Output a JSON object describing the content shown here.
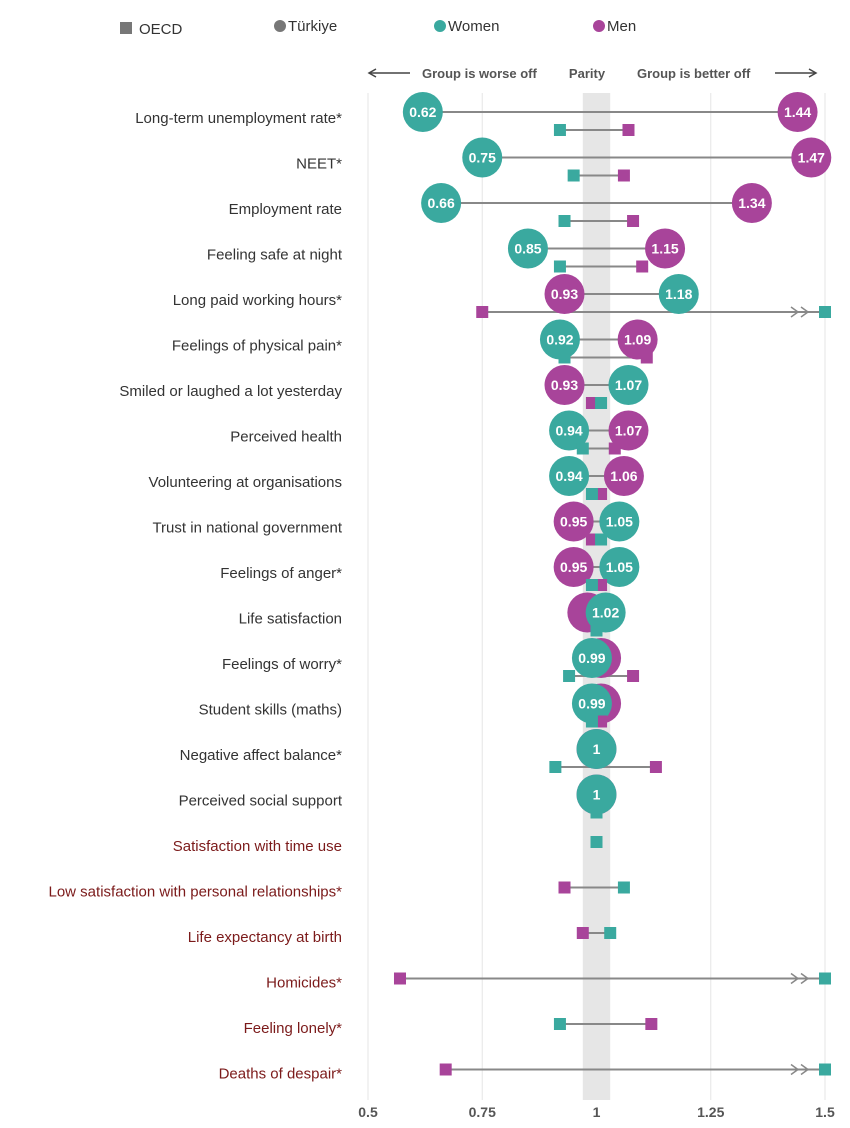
{
  "legend": {
    "oecd": "OECD",
    "turkiye": "Türkiye",
    "women": "Women",
    "men": "Men"
  },
  "direction": {
    "worse": "Group is worse off",
    "parity": "Parity",
    "better": "Group is better off"
  },
  "colors": {
    "women": "#3aa99f",
    "men": "#a8449a",
    "grey_marker": "#808080",
    "connector": "#888888",
    "label_normal": "#333333",
    "label_highlight": "#7b1a1a",
    "parity_band": "#e6e6e6",
    "grid": "#e6e6e6"
  },
  "chart_data": {
    "type": "scatter",
    "title": "",
    "xlabel": "",
    "ylabel": "",
    "xlim": [
      0.5,
      1.5
    ],
    "parity_band": [
      0.97,
      1.03
    ],
    "ticks": [
      {
        "value": 0.5,
        "label": "0.5"
      },
      {
        "value": 0.75,
        "label": "0.75"
      },
      {
        "value": 1,
        "label": "1"
      },
      {
        "value": 1.25,
        "label": "1.25"
      },
      {
        "value": 1.5,
        "label": "1.5"
      }
    ],
    "rows": [
      {
        "label": "Long-term unemployment rate*",
        "highlight": false,
        "turkiye": {
          "women": 0.62,
          "men": 1.44,
          "women_label": "0.62",
          "men_label": "1.44"
        },
        "oecd": {
          "women": 0.92,
          "men": 1.07
        }
      },
      {
        "label": "NEET*",
        "highlight": false,
        "turkiye": {
          "women": 0.75,
          "men": 1.47,
          "women_label": "0.75",
          "men_label": "1.47"
        },
        "oecd": {
          "women": 0.95,
          "men": 1.06
        }
      },
      {
        "label": "Employment rate",
        "highlight": false,
        "turkiye": {
          "women": 0.66,
          "men": 1.34,
          "women_label": "0.66",
          "men_label": "1.34"
        },
        "oecd": {
          "women": 0.93,
          "men": 1.08
        }
      },
      {
        "label": "Feeling safe at night",
        "highlight": false,
        "turkiye": {
          "women": 0.85,
          "men": 1.15,
          "women_label": "0.85",
          "men_label": "1.15"
        },
        "oecd": {
          "women": 0.92,
          "men": 1.1
        }
      },
      {
        "label": "Long paid working hours*",
        "highlight": false,
        "turkiye": {
          "women": 1.18,
          "men": 0.93,
          "women_label": "1.18",
          "men_label": "0.93"
        },
        "oecd": {
          "women": 1.5,
          "men": 0.75,
          "overflow": true
        }
      },
      {
        "label": "Feelings of physical pain*",
        "highlight": false,
        "turkiye": {
          "women": 0.92,
          "men": 1.09,
          "women_label": "0.92",
          "men_label": "1.09"
        },
        "oecd": {
          "women": 0.93,
          "men": 1.11
        }
      },
      {
        "label": "Smiled or laughed a lot yesterday",
        "highlight": false,
        "turkiye": {
          "women": 1.07,
          "men": 0.93,
          "women_label": "1.07",
          "men_label": "0.93"
        },
        "oecd": {
          "women": 1.01,
          "men": 0.99
        }
      },
      {
        "label": "Perceived health",
        "highlight": false,
        "turkiye": {
          "women": 0.94,
          "men": 1.07,
          "women_label": "0.94",
          "men_label": "1.07"
        },
        "oecd": {
          "women": 0.97,
          "men": 1.04
        }
      },
      {
        "label": "Volunteering at organisations",
        "highlight": false,
        "turkiye": {
          "women": 0.94,
          "men": 1.06,
          "women_label": "0.94",
          "men_label": "1.06"
        },
        "oecd": {
          "women": 0.99,
          "men": 1.01
        }
      },
      {
        "label": "Trust in national government",
        "highlight": false,
        "turkiye": {
          "women": 1.05,
          "men": 0.95,
          "women_label": "1.05",
          "men_label": "0.95"
        },
        "oecd": {
          "women": 1.01,
          "men": 0.99
        }
      },
      {
        "label": "Feelings of anger*",
        "highlight": false,
        "turkiye": {
          "women": 1.05,
          "men": 0.95,
          "women_label": "1.05",
          "men_label": "0.95"
        },
        "oecd": {
          "women": 0.99,
          "men": 1.01
        }
      },
      {
        "label": "Life satisfaction",
        "highlight": false,
        "turkiye": {
          "women": 1.02,
          "men": 0.98,
          "women_label": "1.02",
          "men_label": ""
        },
        "oecd": {
          "women": 1.0,
          "men": 1.0
        }
      },
      {
        "label": "Feelings of worry*",
        "highlight": false,
        "turkiye": {
          "women": 0.99,
          "men": 1.01,
          "women_label": "0.99",
          "men_label": ""
        },
        "oecd": {
          "women": 0.94,
          "men": 1.08
        }
      },
      {
        "label": "Student skills (maths)",
        "highlight": false,
        "turkiye": {
          "women": 0.99,
          "men": 1.01,
          "women_label": "0.99",
          "men_label": ""
        },
        "oecd": {
          "women": 0.99,
          "men": 1.01
        }
      },
      {
        "label": "Negative affect balance*",
        "highlight": false,
        "turkiye": {
          "women": 1.0,
          "men": 1.0,
          "women_label": "1",
          "men_label": ""
        },
        "oecd": {
          "women": 0.91,
          "men": 1.13
        }
      },
      {
        "label": "Perceived social support",
        "highlight": false,
        "turkiye": {
          "women": 1.0,
          "men": 1.0,
          "women_label": "1",
          "men_label": ""
        },
        "oecd": {
          "women": 1.0,
          "men": 1.0
        }
      },
      {
        "label": "Satisfaction with time use",
        "highlight": true,
        "turkiye": null,
        "oecd": {
          "women": 1.0,
          "men": 1.0
        }
      },
      {
        "label": "Low satisfaction with personal relationships*",
        "highlight": true,
        "turkiye": null,
        "oecd": {
          "women": 1.06,
          "men": 0.93
        }
      },
      {
        "label": "Life expectancy at birth",
        "highlight": true,
        "turkiye": null,
        "oecd": {
          "women": 1.03,
          "men": 0.97
        }
      },
      {
        "label": "Homicides*",
        "highlight": true,
        "turkiye": null,
        "oecd": {
          "women": 1.5,
          "men": 0.57,
          "overflow": true
        }
      },
      {
        "label": "Feeling lonely*",
        "highlight": true,
        "turkiye": null,
        "oecd": {
          "women": 0.92,
          "men": 1.12
        }
      },
      {
        "label": "Deaths of despair*",
        "highlight": true,
        "turkiye": null,
        "oecd": {
          "women": 1.5,
          "men": 0.67,
          "overflow": true
        }
      }
    ]
  }
}
